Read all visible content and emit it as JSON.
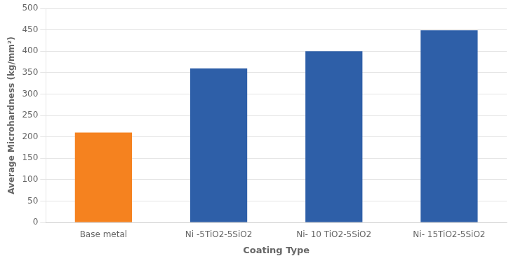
{
  "chart_data": {
    "type": "bar",
    "categories": [
      "Base metal",
      "Ni -5TiO2-5SiO2",
      "Ni- 10 TiO2-5SiO2",
      "Ni- 15TiO2-5SiO2"
    ],
    "values": [
      210,
      360,
      400,
      449
    ],
    "colors": [
      "#F5821F",
      "#2E5FA8",
      "#2E5FA8",
      "#2E5FA8"
    ],
    "xlabel": "Coating Type",
    "ylabel": "Average Microhardness (kg/mm²)",
    "ylim": [
      0,
      500
    ],
    "yticks": [
      0,
      50,
      100,
      150,
      200,
      250,
      300,
      350,
      400,
      450,
      500
    ],
    "grid": true
  }
}
